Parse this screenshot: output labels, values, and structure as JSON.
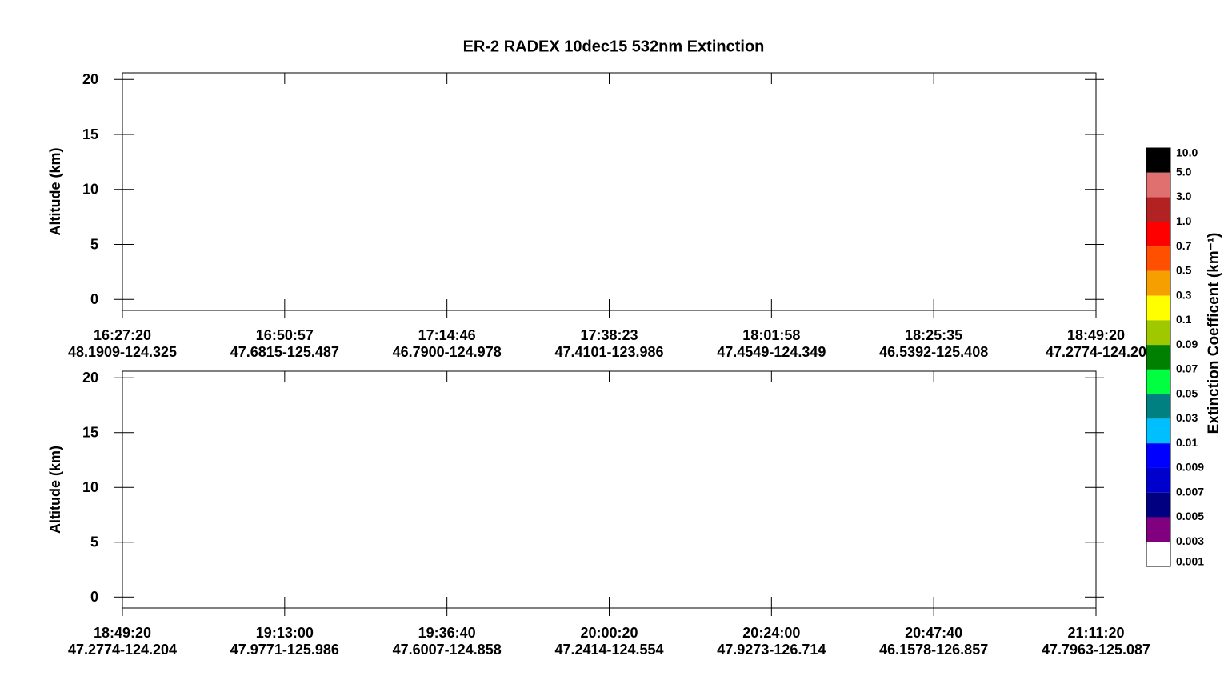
{
  "chart_data": [
    {
      "type": "heatmap",
      "title": "ER-2  RADEX  10dec15  532nm Extinction",
      "y_label": "Altitude (km)",
      "ylim": [
        -1,
        20.6
      ],
      "yticks": [
        0,
        5,
        10,
        15,
        20
      ],
      "categories": [
        "16:27:20",
        "16:50:57",
        "17:14:46",
        "17:38:23",
        "18:01:58",
        "18:25:35",
        "18:49:20"
      ],
      "locations": [
        "48.1909-124.325",
        "47.6815-125.487",
        "46.7900-124.978",
        "47.4101-123.986",
        "47.4549-124.349",
        "46.5392-125.408",
        "47.2774-124.20"
      ]
    },
    {
      "type": "heatmap",
      "y_label": "Altitude (km)",
      "ylim": [
        -1,
        20.6
      ],
      "yticks": [
        0,
        5,
        10,
        15,
        20
      ],
      "categories": [
        "18:49:20",
        "19:13:00",
        "19:36:40",
        "20:00:20",
        "20:24:00",
        "20:47:40",
        "21:11:20"
      ],
      "locations": [
        "47.2774-124.204",
        "47.9771-125.986",
        "47.6007-124.858",
        "47.2414-124.554",
        "47.9273-126.714",
        "46.1578-126.857",
        "47.7963-125.087"
      ]
    },
    {
      "type": "colorbar",
      "title": "Extinction Coefficent (km⁻¹)",
      "ticks": [
        {
          "value": 10,
          "label": "10.0"
        },
        {
          "value": 5,
          "label": "5.0"
        },
        {
          "value": 3,
          "label": "3.0"
        },
        {
          "value": 1,
          "label": "1.0"
        },
        0.7,
        0.5,
        0.3,
        0.1,
        0.09,
        0.07,
        0.05,
        0.03,
        0.01,
        0.009,
        0.007,
        0.005,
        0.003,
        0.001
      ],
      "colors": [
        "#000000",
        "#e07070",
        "#b22222",
        "#ff0000",
        "#ff5000",
        "#f5a000",
        "#ffff00",
        "#a0c800",
        "#008000",
        "#00ff40",
        "#008080",
        "#00bfff",
        "#0000ff",
        "#0000cd",
        "#000080",
        "#800080",
        "#ffffff"
      ]
    }
  ]
}
